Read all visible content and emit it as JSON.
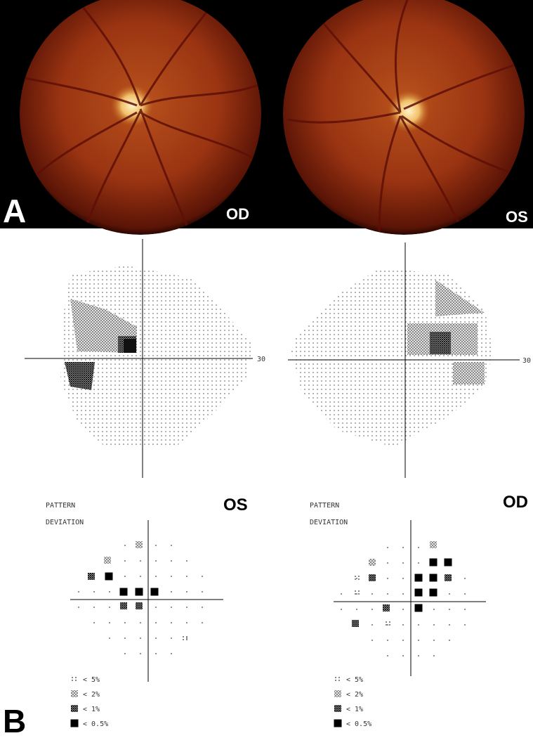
{
  "panel_a": {
    "label": "A",
    "left_eye": "OD",
    "right_eye": "OS"
  },
  "panel_b": {
    "label": "B",
    "gray_scale": [
      {
        "axis_label": "30"
      },
      {
        "axis_label": "30"
      }
    ],
    "pattern_deviation": [
      {
        "title_line1": "PATTERN",
        "title_line2": "DEVIATION",
        "eye": "OS",
        "legend": [
          "< 5%",
          "< 2%",
          "< 1%",
          "< 0.5%"
        ]
      },
      {
        "title_line1": "PATTERN",
        "title_line2": "DEVIATION",
        "eye": "OD",
        "legend": [
          "< 5%",
          "< 2%",
          "< 1%",
          "< 0.5%"
        ]
      }
    ]
  }
}
